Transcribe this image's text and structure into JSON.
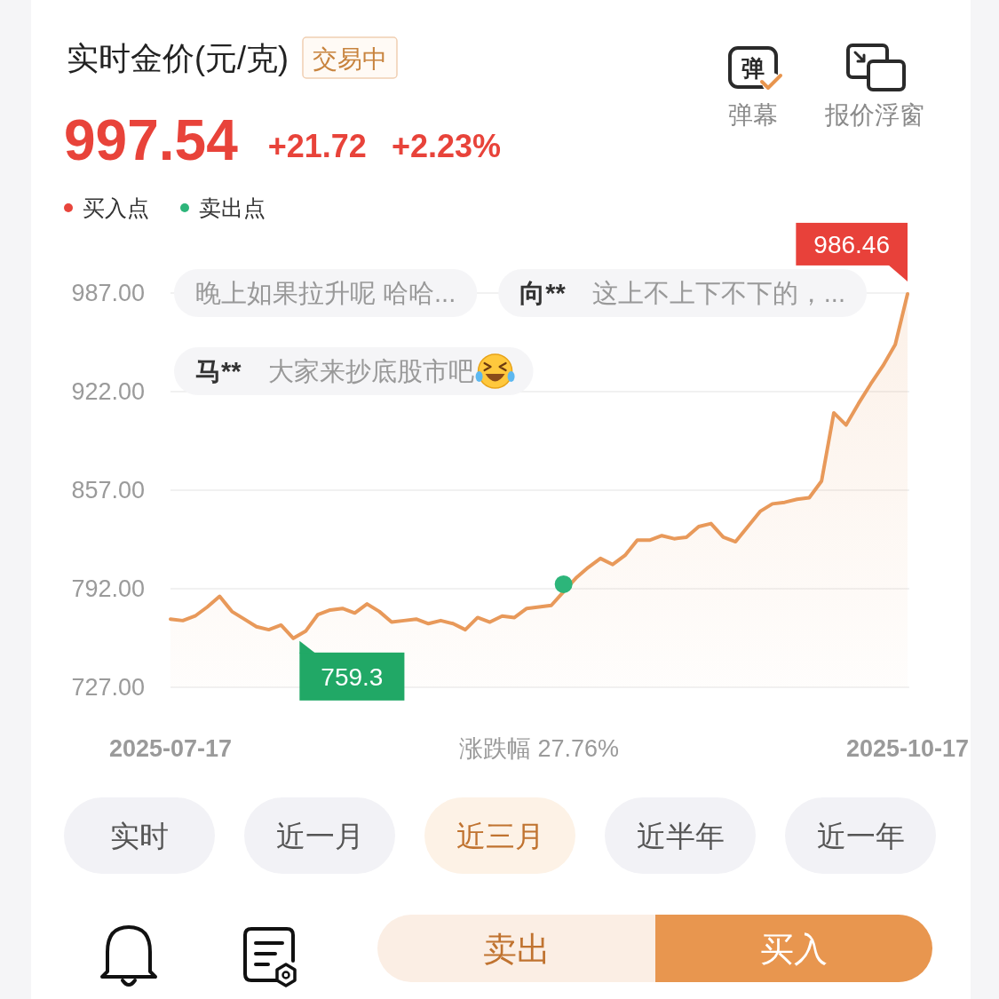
{
  "chart_data": {
    "type": "area",
    "title": "实时金价(元/克)",
    "annotations": [
      "交易中",
      "997.54",
      "+21.72",
      "+2.23%",
      "弹",
      "弹幕",
      "报价浮窗",
      "晚上如果拉升呢 哈哈...",
      "向**",
      "这上不上下不下的，...",
      "马**",
      "大家来抄底股市吧",
      "涨跌幅 27.76%",
      "实时",
      "近一月",
      "近三月",
      "近半年",
      "近一年",
      "卖出",
      "买入"
    ],
    "categories": [
      "2025-07-17",
      null,
      null,
      null,
      null,
      null,
      null,
      null,
      null,
      null,
      null,
      null,
      null,
      null,
      null,
      null,
      null,
      null,
      null,
      null,
      null,
      null,
      null,
      null,
      null,
      null,
      null,
      null,
      null,
      null,
      null,
      null,
      null,
      null,
      null,
      null,
      null,
      null,
      null,
      null,
      null,
      null,
      null,
      null,
      null,
      null,
      null,
      null,
      null,
      null,
      null,
      null,
      null,
      null,
      null,
      null,
      null,
      null,
      null,
      null,
      "2025-10-17"
    ],
    "series": [
      {
        "color": "#e8995a",
        "values": [
          772,
          771,
          774,
          780,
          787,
          777,
          772,
          767,
          765,
          768,
          759.3,
          764,
          775,
          778,
          779,
          776,
          782,
          777,
          770,
          771,
          772,
          769,
          771,
          769,
          765,
          773,
          770,
          774,
          773,
          779,
          780,
          781,
          790,
          799,
          806,
          812,
          808,
          814,
          824,
          824,
          827,
          825,
          826,
          833,
          835,
          826,
          823,
          833,
          843,
          848,
          849,
          851,
          852,
          863,
          908,
          900,
          914,
          927,
          939,
          953,
          986.46
        ],
        "value_labels": [
          null,
          null,
          null,
          null,
          null,
          null,
          null,
          null,
          null,
          null,
          "759.3",
          null,
          null,
          null,
          null,
          null,
          null,
          null,
          null,
          null,
          null,
          null,
          null,
          null,
          null,
          null,
          null,
          null,
          null,
          null,
          null,
          null,
          null,
          null,
          null,
          null,
          null,
          null,
          null,
          null,
          null,
          null,
          null,
          null,
          null,
          null,
          null,
          null,
          null,
          null,
          null,
          null,
          null,
          null,
          null,
          null,
          null,
          null,
          null,
          null,
          "986.46"
        ]
      },
      {
        "type": "scatter",
        "name": "买入点",
        "color": "#e8453c",
        "marker": "circle",
        "values": [
          null,
          null,
          null,
          null,
          null,
          null,
          null,
          null,
          null,
          null,
          null,
          null,
          null,
          null,
          null,
          null,
          null,
          null,
          null,
          null,
          null,
          null,
          null,
          null,
          null,
          null,
          null,
          null,
          null,
          null,
          null,
          null,
          null,
          null,
          null,
          null,
          null,
          null,
          null,
          null,
          null,
          null,
          null,
          null,
          null,
          null,
          null,
          null,
          null,
          null,
          null,
          null,
          null,
          null,
          null,
          null,
          null,
          null,
          null,
          null,
          null
        ]
      },
      {
        "type": "scatter",
        "name": "卖出点",
        "color": "#2db57a",
        "marker": "circle",
        "values": [
          null,
          null,
          null,
          null,
          null,
          null,
          null,
          null,
          null,
          null,
          null,
          null,
          null,
          null,
          null,
          null,
          null,
          null,
          null,
          null,
          null,
          null,
          null,
          null,
          null,
          null,
          null,
          null,
          null,
          null,
          null,
          null,
          795,
          null,
          null,
          null,
          null,
          null,
          null,
          null,
          null,
          null,
          null,
          null,
          null,
          null,
          null,
          null,
          null,
          null,
          null,
          null,
          null,
          null,
          null,
          null,
          null,
          null,
          null,
          null,
          null
        ]
      }
    ],
    "ylim": [
      727,
      987
    ],
    "yticks": [
      {
        "value": 727,
        "label": "727.00"
      },
      {
        "value": 792,
        "label": "792.00"
      },
      {
        "value": 857,
        "label": "857.00"
      },
      {
        "value": 922,
        "label": "922.00"
      },
      {
        "value": 987,
        "label": "987.00"
      }
    ],
    "grid": "y",
    "legend": "top left"
  }
}
